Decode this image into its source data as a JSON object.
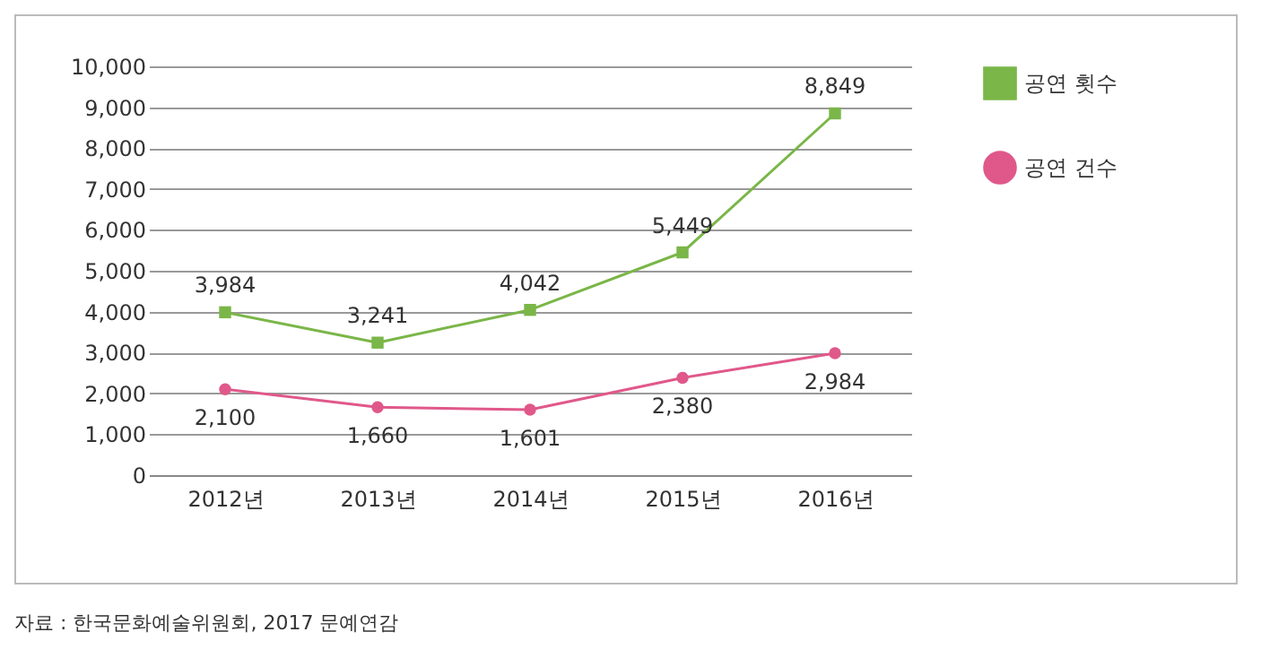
{
  "chart_data": {
    "type": "line",
    "categories": [
      "2012년",
      "2013년",
      "2014년",
      "2015년",
      "2016년"
    ],
    "series": [
      {
        "name": "공연 횟수",
        "color": "#7ab648",
        "marker": "square",
        "line_style": "solid",
        "values": [
          3984,
          3241,
          4042,
          5449,
          8849
        ],
        "value_labels": [
          "3,984",
          "3,241",
          "4,042",
          "5,449",
          "8,849"
        ]
      },
      {
        "name": "공연 건수",
        "color": "#e0588a",
        "marker": "circle",
        "line_style": "solid",
        "values": [
          2100,
          1660,
          1601,
          2380,
          2984
        ],
        "value_labels": [
          "2,100",
          "1,660",
          "1,601",
          "2,380",
          "2,984"
        ]
      }
    ],
    "ylim": [
      0,
      10000
    ],
    "yticks": [
      0,
      {
        "value": 1000,
        "label": "1,000"
      },
      {
        "value": 2000,
        "label": "2,000"
      },
      {
        "value": 3000,
        "label": "3,000"
      },
      {
        "value": 4000,
        "label": "4,000"
      },
      {
        "value": 5000,
        "label": "5,000"
      },
      {
        "value": 6000,
        "label": "6,000"
      },
      {
        "value": 7000,
        "label": "7,000"
      },
      {
        "value": 8000,
        "label": "8,000"
      },
      {
        "value": 9000,
        "label": "9,000"
      },
      {
        "value": 10000,
        "label": "10,000"
      }
    ],
    "grid": "y",
    "legend": "right",
    "data_labels": true,
    "annotations": [
      "자료 : 한국문화예술위원회, 2017 문예연감"
    ]
  }
}
